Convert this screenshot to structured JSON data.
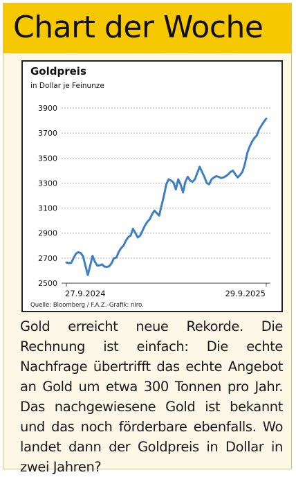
{
  "header": {
    "title": "Chart der Woche"
  },
  "chart_data": {
    "type": "line",
    "title": "Goldpreis",
    "subtitle": "in Dollar je Feinunze",
    "x_tick_labels": [
      "27.9.2024",
      "29.9.2025"
    ],
    "y_ticks": [
      2500,
      2700,
      2900,
      3100,
      3300,
      3500,
      3700,
      3900
    ],
    "ylim": [
      2500,
      3900
    ],
    "grid": true,
    "source": "Quelle: Bloomberg / F.A.Z.-Grafik: niro.",
    "series": [
      {
        "color": "#3d7fc1",
        "values": [
          2665,
          2660,
          2662,
          2700,
          2735,
          2748,
          2740,
          2715,
          2640,
          2565,
          2640,
          2718,
          2670,
          2640,
          2642,
          2650,
          2632,
          2630,
          2635,
          2660,
          2700,
          2705,
          2750,
          2780,
          2800,
          2840,
          2868,
          2880,
          2935,
          2900,
          2865,
          2880,
          2920,
          2960,
          2990,
          3010,
          3050,
          3080,
          3060,
          3040,
          3120,
          3200,
          3290,
          3330,
          3320,
          3305,
          3250,
          3330,
          3290,
          3225,
          3310,
          3350,
          3320,
          3310,
          3330,
          3380,
          3430,
          3390,
          3350,
          3300,
          3290,
          3330,
          3345,
          3355,
          3350,
          3340,
          3345,
          3355,
          3370,
          3390,
          3400,
          3370,
          3345,
          3365,
          3390,
          3450,
          3540,
          3590,
          3630,
          3660,
          3680,
          3730,
          3760,
          3790,
          3815
        ]
      }
    ]
  },
  "caption": "Gold erreicht neue Rekorde. Die Rechnung ist einfach: Die echte Nachfrage übertrifft das echte Angebot an Gold um etwa 300 Tonnen pro Jahr. Das nachgewiesene Gold ist bekannt und das noch förderbare ebenfalls. Wo landet dann der Goldpreis in Dollar in zwei Jahren?"
}
